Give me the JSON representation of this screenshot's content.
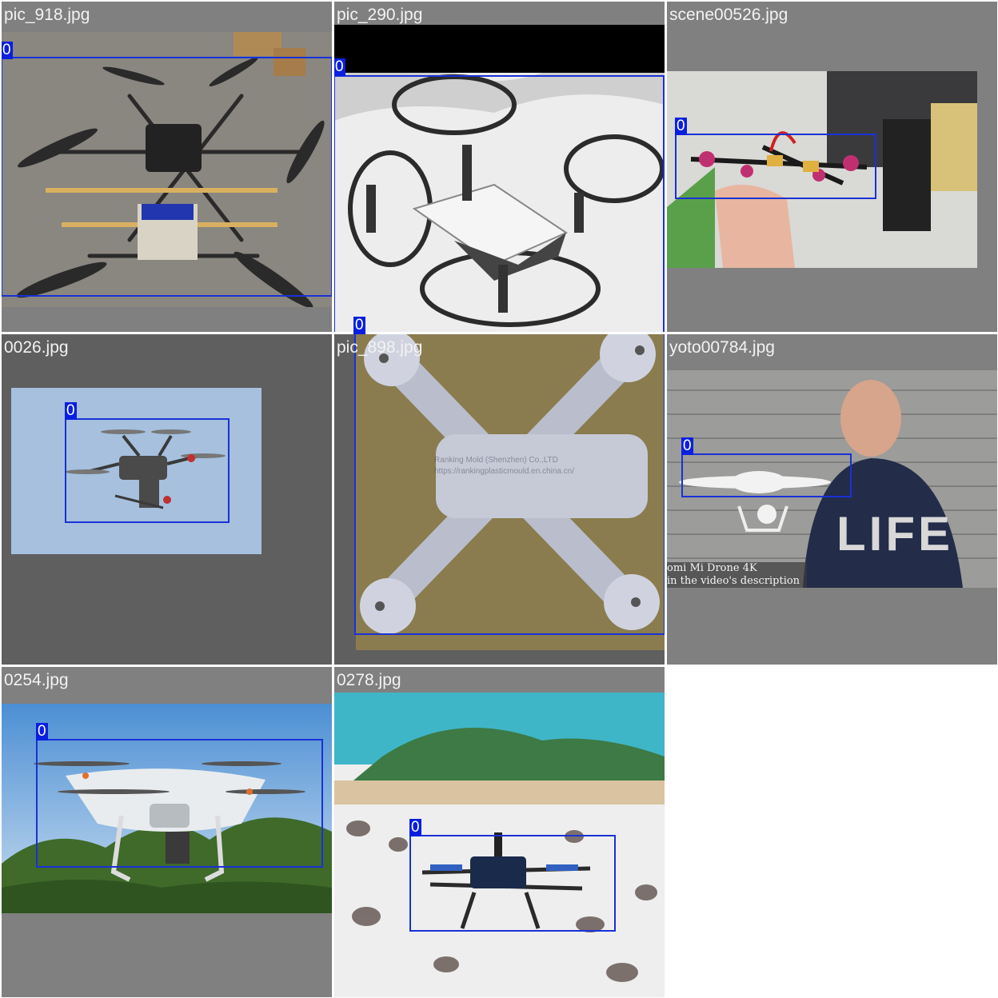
{
  "tiles": [
    {
      "filename": "pic_918.jpg",
      "class_id": "0"
    },
    {
      "filename": "pic_290.jpg",
      "class_id": "0"
    },
    {
      "filename": "scene00526.jpg",
      "class_id": "0"
    },
    {
      "filename": "0026.jpg",
      "class_id": "0"
    },
    {
      "filename": "pic_898.jpg",
      "class_id": "0",
      "watermark_line1": "Ranking Mold (Shenzhen) Co.,LTD",
      "watermark_line2": "https://rankingplasticmould.en.china.cn/"
    },
    {
      "filename": "yoto00784.jpg",
      "class_id": "0",
      "caption_line1": "omi Mi Drone 4K",
      "caption_line2": "in the video's description",
      "shirt_text": "LIFE"
    },
    {
      "filename": "0254.jpg",
      "class_id": "0"
    },
    {
      "filename": "0278.jpg",
      "class_id": "0"
    }
  ],
  "colors": {
    "box": "#1a31d6",
    "label_bg": "#0a1fe0",
    "tile_gray": "#808080",
    "tile_dark": "#5f5f5f"
  }
}
